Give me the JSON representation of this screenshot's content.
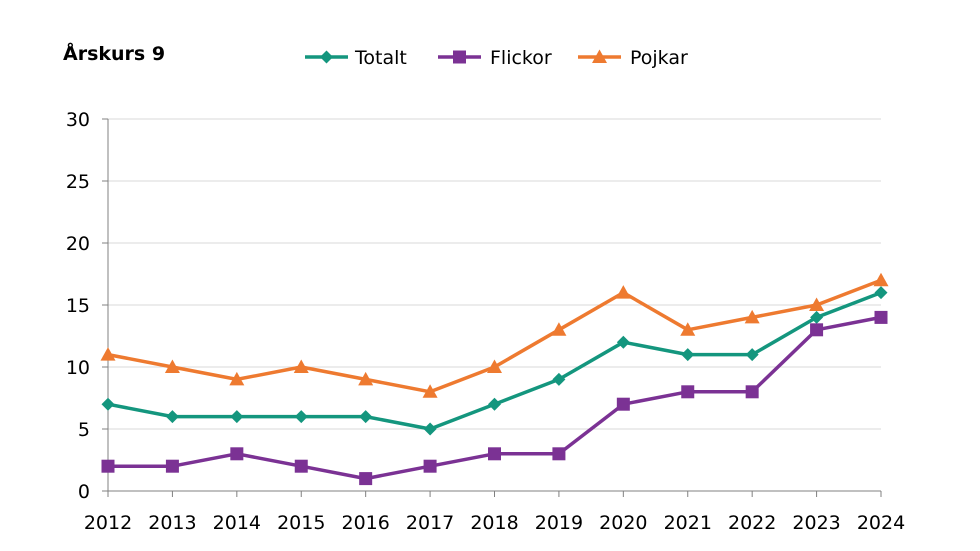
{
  "chart_data": {
    "type": "line",
    "title": "Årskurs 9",
    "x": [
      "2012",
      "2013",
      "2014",
      "2015",
      "2016",
      "2017",
      "2018",
      "2019",
      "2020",
      "2021",
      "2022",
      "2023",
      "2024"
    ],
    "series": [
      {
        "name": "Totalt",
        "color": "#14967E",
        "marker": "diamond",
        "values": [
          7,
          6,
          6,
          6,
          6,
          5,
          7,
          9,
          12,
          11,
          11,
          14,
          16
        ]
      },
      {
        "name": "Flickor",
        "color": "#7B3294",
        "marker": "square",
        "values": [
          2,
          2,
          3,
          2,
          1,
          2,
          3,
          3,
          7,
          8,
          8,
          13,
          14
        ]
      },
      {
        "name": "Pojkar",
        "color": "#EE7A30",
        "marker": "triangle",
        "values": [
          11,
          10,
          9,
          10,
          9,
          8,
          10,
          13,
          16,
          13,
          14,
          15,
          17
        ]
      }
    ],
    "ylim": [
      0,
      30
    ],
    "yticks": [
      0,
      5,
      10,
      15,
      20,
      25,
      30
    ],
    "xlabel": "",
    "ylabel": "",
    "grid": true,
    "legend_position": "top"
  }
}
